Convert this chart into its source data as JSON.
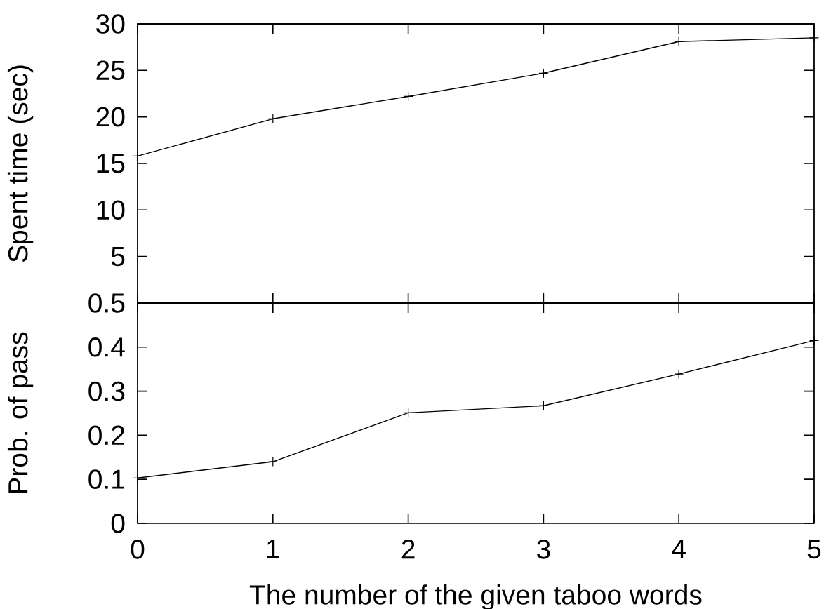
{
  "chart_data": [
    {
      "type": "line",
      "ylabel": "Spent time (sec)",
      "x": [
        0,
        1,
        2,
        3,
        4,
        5
      ],
      "xlim": [
        0,
        5
      ],
      "xticks": [
        0,
        1,
        2,
        3,
        4,
        5
      ],
      "ylim": [
        0,
        30
      ],
      "yticks": [
        5,
        10,
        15,
        20,
        25,
        30
      ],
      "tick_labels": "y",
      "marker": "cross",
      "line_style": "solid",
      "series": [
        {
          "color": "#000000",
          "values": [
            15.8,
            19.8,
            22.2,
            24.7,
            28.1,
            28.5
          ]
        }
      ]
    },
    {
      "type": "line",
      "xlabel": "The number of the given taboo words",
      "ylabel": "Prob. of pass",
      "x": [
        0,
        1,
        2,
        3,
        4,
        5
      ],
      "xlim": [
        0,
        5
      ],
      "xticks": [
        0,
        1,
        2,
        3,
        4,
        5
      ],
      "ylim": [
        0,
        0.5
      ],
      "yticks": [
        0,
        0.1,
        0.2,
        0.3,
        0.4,
        0.5
      ],
      "marker": "cross",
      "line_style": "solid",
      "series": [
        {
          "color": "#000000",
          "values": [
            0.103,
            0.14,
            0.251,
            0.267,
            0.339,
            0.415
          ]
        }
      ]
    }
  ]
}
